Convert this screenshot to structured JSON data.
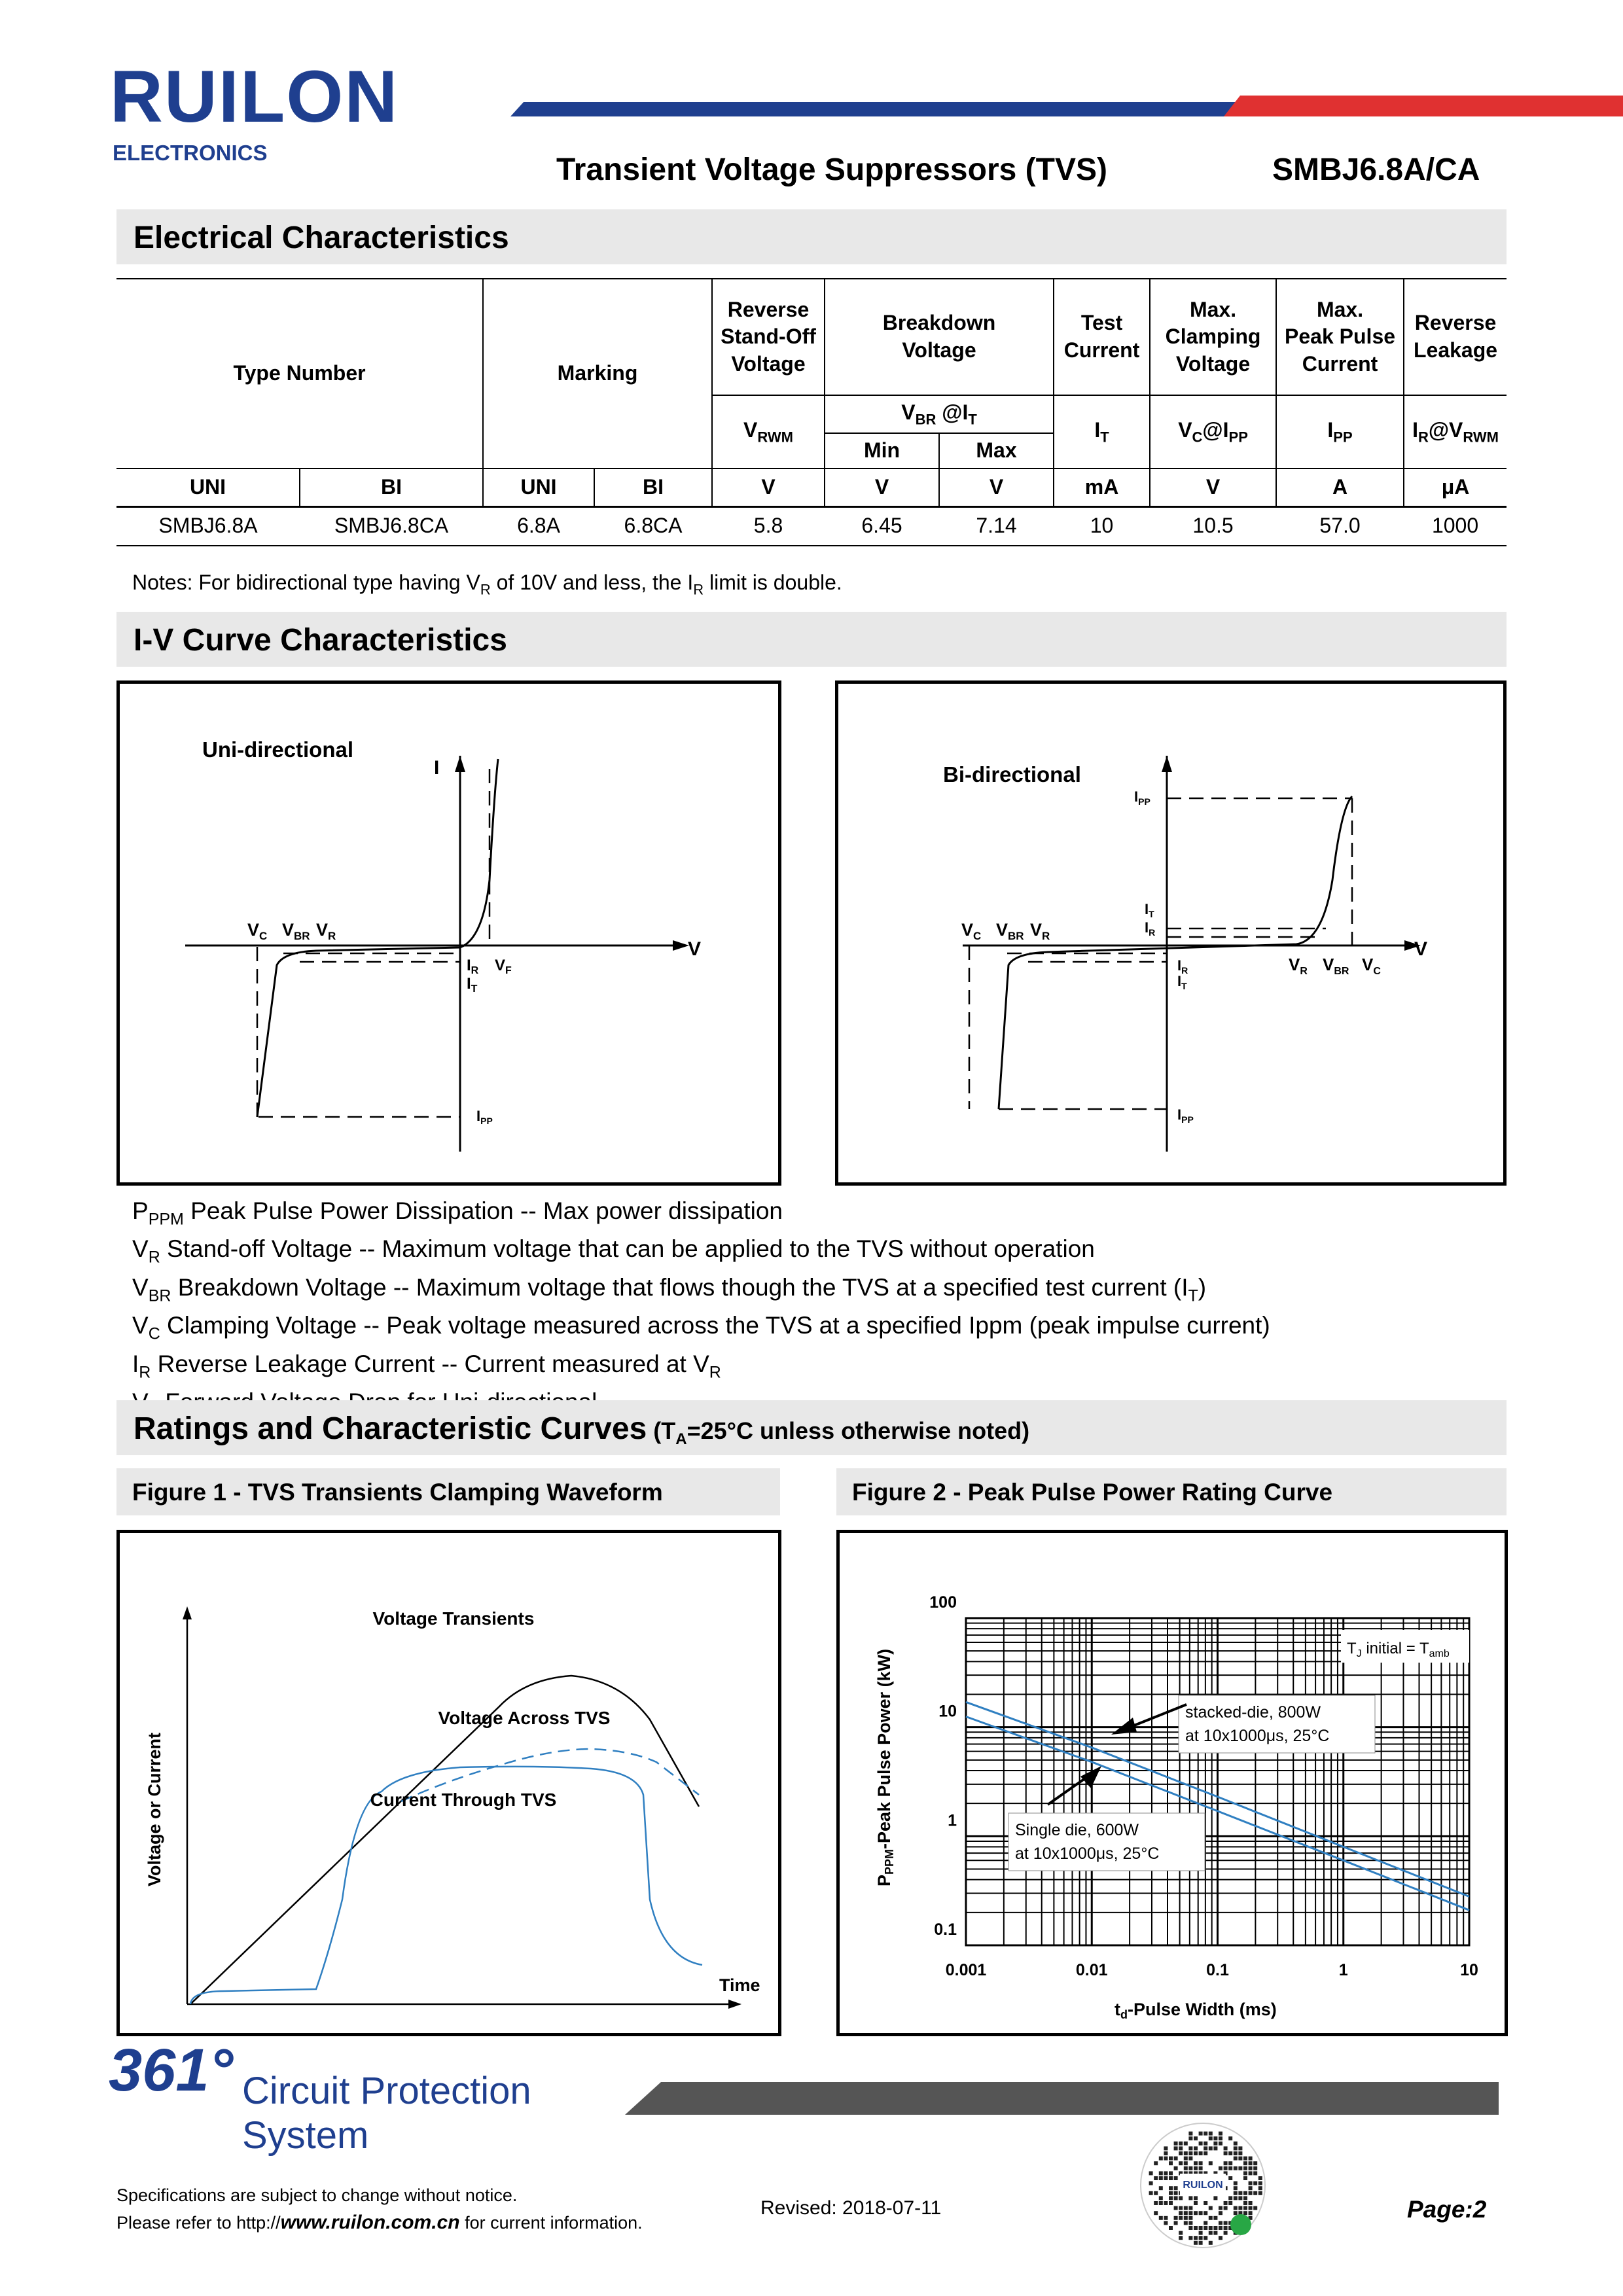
{
  "brand": {
    "logo": "RUILON",
    "sub": "ELECTRONICS",
    "colors": {
      "blue": "#1f3f8f",
      "red": "#e03131",
      "curve": "#2f7fc1"
    }
  },
  "header": {
    "title": "Transient  Voltage  Suppressors  (TVS)",
    "part": "SMBJ6.8A/CA"
  },
  "electrical": {
    "section_title": "Electrical Characteristics",
    "headers": {
      "type_number": "Type Number",
      "marking": "Marking",
      "vrwm_l1": "Reverse",
      "vrwm_l2": "Stand-Off",
      "vrwm_l3": "Voltage",
      "vbr_l1": "Breakdown",
      "vbr_l2": "Voltage",
      "it_l1": "Test",
      "it_l2": "Current",
      "vc_l1": "Max.",
      "vc_l2": "Clamping",
      "vc_l3": "Voltage",
      "ipp_l1": "Max.",
      "ipp_l2": "Peak Pulse",
      "ipp_l3": "Current",
      "ir_l1": "Reverse",
      "ir_l2": "Leakage"
    },
    "symbols": {
      "vrwm_base": "V",
      "vrwm_sub": "RWM",
      "vbr_base": "V",
      "vbr_sub": "BR",
      "vbr_at": " @I",
      "vbr_at_sub": "T",
      "min": "Min",
      "max": "Max",
      "it_base": "I",
      "it_sub": "T",
      "vc_base": "V",
      "vc_sub": "C",
      "vc_at": "@I",
      "vc_at_sub": "PP",
      "ipp_base": "I",
      "ipp_sub": "PP",
      "ir_base": "I",
      "ir_sub": "R",
      "ir_at": "@V",
      "ir_at_sub": "RWM"
    },
    "units": [
      "UNI",
      "BI",
      "UNI",
      "BI",
      "V",
      "V",
      "V",
      "mA",
      "V",
      "A",
      "μA"
    ],
    "rows": [
      [
        "SMBJ6.8A",
        "SMBJ6.8CA",
        "6.8A",
        "6.8CA",
        "5.8",
        "6.45",
        "7.14",
        "10",
        "10.5",
        "57.0",
        "1000"
      ]
    ],
    "notes": {
      "pre": "Notes: For bidirectional type having V",
      "sub1": "R",
      "mid": " of 10V and less, the I",
      "sub2": "R",
      "post": " limit is double."
    }
  },
  "iv": {
    "section_title": "I-V Curve Characteristics",
    "uni": {
      "title": "Uni-directional",
      "i_axis": "I",
      "v_axis": "V",
      "labels": [
        {
          "base": "V",
          "sub": "C"
        },
        {
          "base": "V",
          "sub": "BR"
        },
        {
          "base": "V",
          "sub": "R"
        },
        {
          "base": "I",
          "sub": "R"
        },
        {
          "base": "V",
          "sub": "F"
        },
        {
          "base": "I",
          "sub": "T"
        },
        {
          "base": "I",
          "sub": "PP"
        }
      ]
    },
    "bi": {
      "title": "Bi-directional",
      "v_axis": "V",
      "labels": [
        {
          "base": "I",
          "sub": "PP"
        },
        {
          "base": "I",
          "sub": "T"
        },
        {
          "base": "I",
          "sub": "R"
        },
        {
          "base": "V",
          "sub": "C"
        },
        {
          "base": "V",
          "sub": "BR"
        },
        {
          "base": "V",
          "sub": "R"
        },
        {
          "base": "I",
          "sub": "R"
        },
        {
          "base": "I",
          "sub": "T"
        },
        {
          "base": "V",
          "sub": "R"
        },
        {
          "base": "V",
          "sub": "BR"
        },
        {
          "base": "V",
          "sub": "C"
        },
        {
          "base": "I",
          "sub": "PP"
        }
      ]
    },
    "definitions": [
      {
        "sym": "P",
        "sub": "PPM",
        "text": " Peak Pulse Power Dissipation -- Max power dissipation"
      },
      {
        "sym": "V",
        "sub": "R",
        "text": " Stand-off Voltage -- Maximum voltage that can be applied to the TVS without operation"
      },
      {
        "sym": "V",
        "sub": "BR",
        "text": " Breakdown Voltage -- Maximum voltage that flows though the TVS at a specified test current (I",
        "sub2": "T",
        "tail": ")"
      },
      {
        "sym": "V",
        "sub": "C",
        "text": " Clamping Voltage -- Peak voltage measured across the TVS at a specified Ippm (peak impulse current)"
      },
      {
        "sym": "I",
        "sub": "R",
        "text": " Reverse Leakage Current -- Current measured at V",
        "sub2": "R",
        "tail": ""
      },
      {
        "sym": "V",
        "sub": "F",
        "text": " Forward Voltage Drop for Uni-directional"
      }
    ]
  },
  "ratings": {
    "title": "Ratings and Characteristic Curves",
    "cond_pre": " (T",
    "cond_sub": "A",
    "cond_post": "=25°C unless otherwise noted)",
    "fig1": {
      "title": "Figure 1 - TVS Transients Clamping Waveform",
      "ylabel": "Voltage or Current",
      "xlabel": "Time",
      "labels": [
        "Voltage Transients",
        "Voltage Across TVS",
        "Current Through TVS"
      ]
    },
    "fig2": {
      "title": "Figure 2 - Peak Pulse Power Rating Curve",
      "ylabel_pre": "P",
      "ylabel_sub": "PPM",
      "ylabel_post": "-Peak Pulse Power (kW)",
      "xlabel_pre": "t",
      "xlabel_sub": "d",
      "xlabel_post": "-Pulse Width (ms)",
      "legend_pre": "T",
      "legend_sub": "J",
      "legend_mid": " initial = T",
      "legend_sub2": "amb",
      "ann1_l1": "stacked-die, 800W",
      "ann1_l2": "at 10x1000μs, 25°C",
      "ann2_l1": "Single die, 600W",
      "ann2_l2": "at 10x1000μs, 25°C"
    }
  },
  "chart_data": {
    "type": "line",
    "title": "Figure 2 - Peak Pulse Power Rating Curve",
    "xlabel": "td-Pulse Width (ms)",
    "ylabel": "PPPM-Peak Pulse Power (kW)",
    "x_scale": "log",
    "y_scale": "log",
    "xlim": [
      0.001,
      10
    ],
    "ylim": [
      0.1,
      100
    ],
    "xticks": [
      "0.001",
      "0.01",
      "0.1",
      "1",
      "10"
    ],
    "yticks": [
      "0.1",
      "1",
      "10",
      "100"
    ],
    "grid": true,
    "series": [
      {
        "name": "stacked-die, 800W",
        "x": [
          0.001,
          0.01,
          0.1,
          1,
          10
        ],
        "y": [
          17,
          6.5,
          2.3,
          0.8,
          0.28
        ]
      },
      {
        "name": "Single die, 600W",
        "x": [
          0.001,
          0.01,
          0.1,
          1,
          10
        ],
        "y": [
          12.5,
          4.8,
          1.7,
          0.6,
          0.21
        ]
      }
    ]
  },
  "footer": {
    "brand_num": "361°",
    "brand_l1": "Circuit Protection",
    "brand_l2": "System",
    "spec_l1": "Specifications are subject to change without notice.",
    "spec_l2_pre": "Please refer to http://",
    "spec_l2_url": "www.ruilon.com.cn",
    "spec_l2_post": " for current information.",
    "revised": "Revised: 2018-07-11",
    "page": "Page:2"
  }
}
